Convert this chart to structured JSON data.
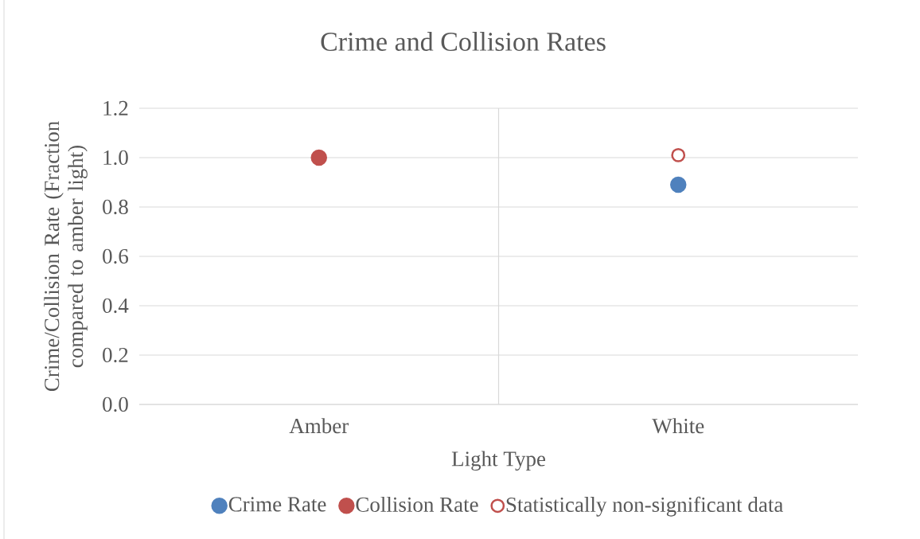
{
  "chart_data": {
    "type": "scatter",
    "title": "Crime and Collision Rates",
    "xlabel": "Light Type",
    "ylabel": "Crime/Collision Rate (Fraction compared to amber light)",
    "categories": [
      "Amber",
      "White"
    ],
    "series": [
      {
        "name": "Crime Rate",
        "color": "#4f81bd",
        "values": [
          null,
          0.89
        ]
      },
      {
        "name": "Collision Rate",
        "color": "#c0504d",
        "values": [
          1.0,
          null
        ]
      },
      {
        "name": "Statistically non-significant data",
        "color": "#c0504d",
        "values": [
          null,
          1.01
        ]
      }
    ],
    "ylim": [
      0,
      1.2
    ],
    "yticks": [
      {
        "value": 0,
        "label": "0.0"
      },
      0.2,
      0.4,
      0.6,
      0.8,
      {
        "value": 1.0,
        "label": "1.0"
      },
      1.2
    ],
    "grid": true,
    "legend": "bottom",
    "marker": "circle"
  }
}
